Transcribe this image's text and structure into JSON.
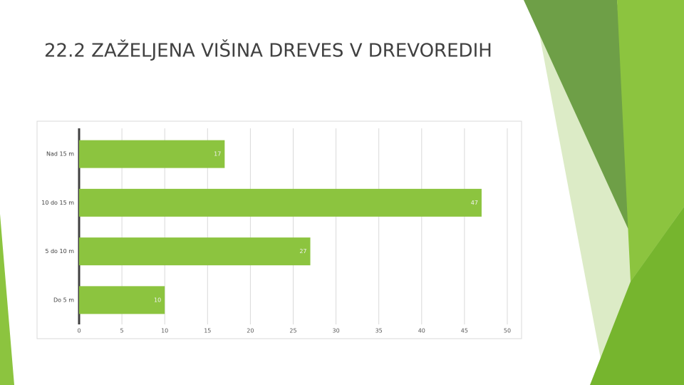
{
  "chart_data": {
    "type": "hbar",
    "title": "22.2 ZAŽELJENA VIŠINA DREVES V DREVOREDIH",
    "categories": [
      "Nad 15 m",
      "10 do 15 m",
      "5 do 10 m",
      "Do 5 m"
    ],
    "values": [
      17,
      47,
      27,
      10
    ],
    "color": "#8cc43f",
    "xlim": [
      0,
      50
    ],
    "xticks": [
      0,
      5,
      10,
      15,
      20,
      25,
      30,
      35,
      40,
      45,
      50
    ],
    "grid": true
  }
}
